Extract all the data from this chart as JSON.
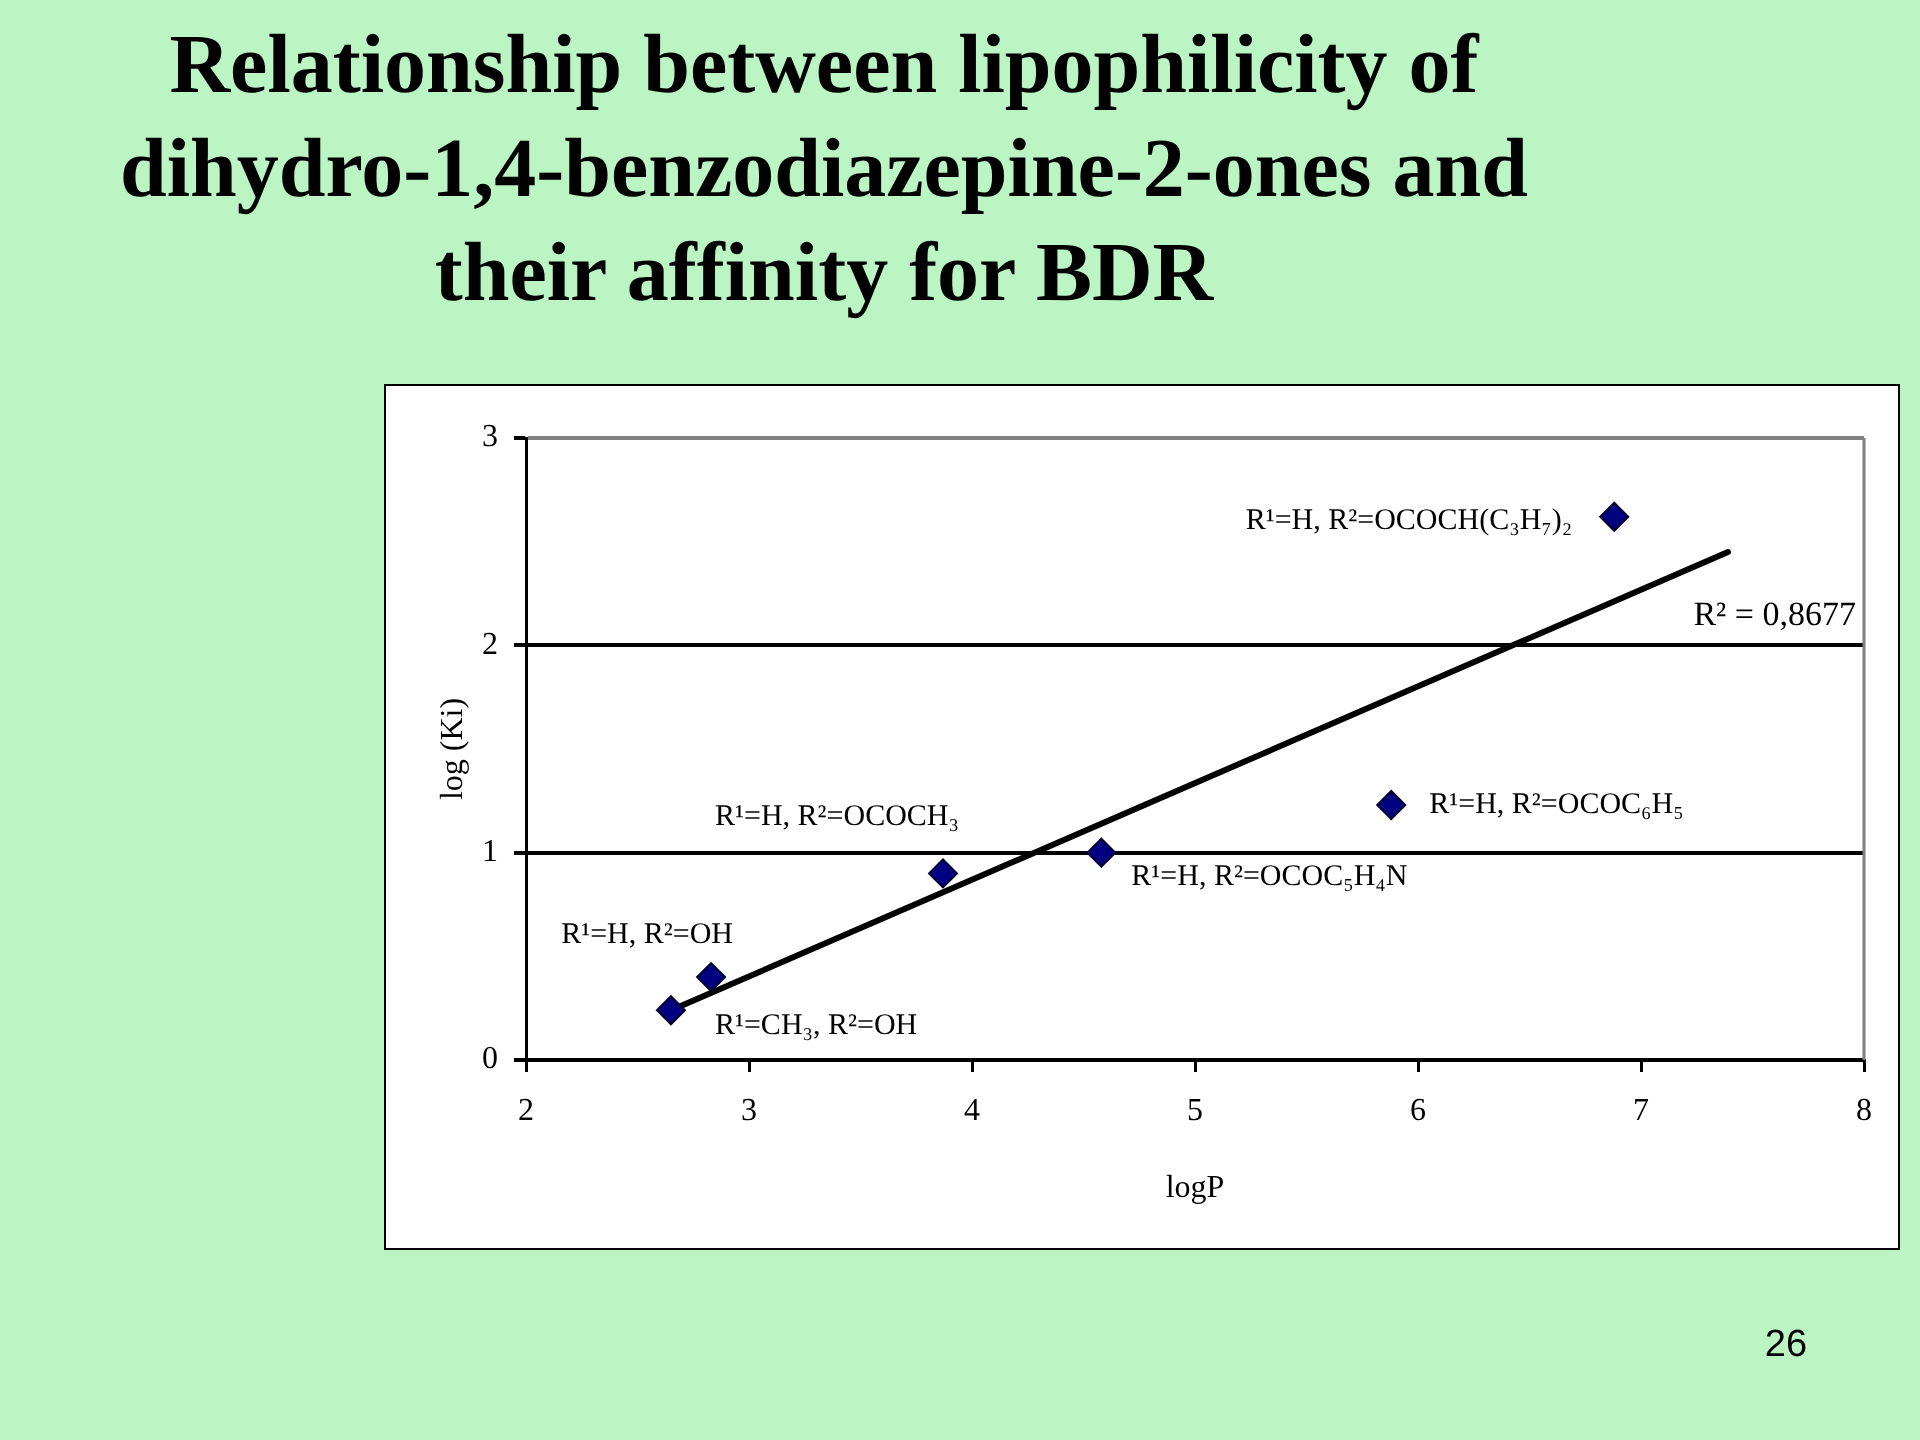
{
  "chart_data": {
    "type": "scatter",
    "title": "Relationship between lipophilicity of dihydro-1,4-benzodiazepine-2-ones and their affinity for BDR",
    "xlabel": "logP",
    "ylabel": "log (Ki)",
    "xlim": [
      2,
      8
    ],
    "xticks": [
      2,
      3,
      4,
      5,
      6,
      7,
      8
    ],
    "ylim": [
      0,
      3
    ],
    "yticks": [
      0,
      1,
      2,
      3
    ],
    "grid": "y",
    "series": [
      {
        "color": "#000080",
        "marker": "diamond",
        "x": [
          2.65,
          2.83,
          3.87,
          4.58,
          5.88,
          6.88
        ],
        "values": [
          0.24,
          0.4,
          0.9,
          1.0,
          1.23,
          2.62
        ]
      },
      {
        "type": "line",
        "color": "#000000",
        "marker": "none",
        "x": [
          2.65,
          7.39
        ],
        "values": [
          0.24,
          2.45
        ]
      }
    ],
    "annotations": [
      {
        "text": "R¹=CH₃, R²=OH",
        "x": 2.65,
        "y": 0.24
      },
      {
        "text": "R¹=H, R²=OH",
        "x": 2.83,
        "y": 0.4
      },
      {
        "text": "R¹=H, R²=OCOCH₃",
        "x": 3.87,
        "y": 0.9
      },
      {
        "text": "R¹=H, R²=OCOC₅H₄N",
        "x": 4.58,
        "y": 1.0
      },
      {
        "text": "R¹=H, R²=OCOC₆H₅",
        "x": 5.88,
        "y": 1.23
      },
      {
        "text": "R¹=H, R²=OCOCH(C₃H₇)₂",
        "x": 6.88,
        "y": 2.62
      },
      "R² = 0,8677",
      "26"
    ]
  }
}
